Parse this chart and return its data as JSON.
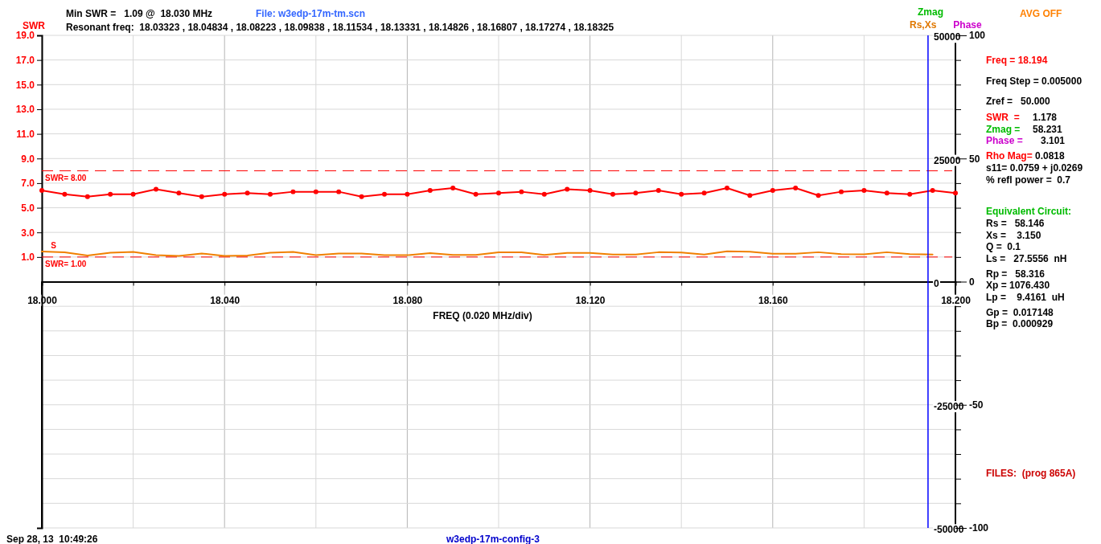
{
  "chart_data": {
    "type": "line",
    "xlabel": "FREQ (0.020 MHz/div)",
    "ylabel": "SWR",
    "y2label": "Zmag",
    "y3label": "Phase",
    "x": [
      18.0,
      18.005,
      18.01,
      18.015,
      18.02,
      18.025,
      18.03,
      18.035,
      18.04,
      18.045,
      18.05,
      18.055,
      18.06,
      18.065,
      18.07,
      18.075,
      18.08,
      18.085,
      18.09,
      18.095,
      18.1,
      18.105,
      18.11,
      18.115,
      18.12,
      18.125,
      18.13,
      18.135,
      18.14,
      18.145,
      18.15,
      18.155,
      18.16,
      18.165,
      18.17,
      18.175,
      18.18,
      18.185,
      18.19,
      18.195,
      18.2
    ],
    "series": [
      {
        "color": "#ff0000",
        "values": [
          6.4,
          6.1,
          5.9,
          6.1,
          6.1,
          6.5,
          6.2,
          5.9,
          6.1,
          6.2,
          6.1,
          6.3,
          6.3,
          6.3,
          5.9,
          6.1,
          6.1,
          6.4,
          6.6,
          6.1,
          6.2,
          6.3,
          6.1,
          6.5,
          6.4,
          6.1,
          6.2,
          6.4,
          6.1,
          6.2,
          6.6,
          6.0,
          6.4,
          6.6,
          6.0,
          6.3,
          6.4,
          6.2,
          6.1,
          6.4,
          6.2
        ]
      },
      {
        "color": "#f08000",
        "marker": "none",
        "values": [
          1.44,
          1.38,
          1.12,
          1.35,
          1.41,
          1.15,
          1.09,
          1.29,
          1.09,
          1.12,
          1.35,
          1.41,
          1.15,
          1.29,
          1.29,
          1.15,
          1.15,
          1.32,
          1.17,
          1.17,
          1.38,
          1.38,
          1.17,
          1.33,
          1.33,
          1.2,
          1.2,
          1.39,
          1.37,
          1.2,
          1.46,
          1.43,
          1.26,
          1.26,
          1.39,
          1.24,
          1.22,
          1.39,
          1.24,
          1.2,
          null
        ]
      }
    ],
    "xlim": [
      18.0,
      18.2
    ],
    "xticks": [
      {
        "value": 18.0,
        "label": "18.000"
      },
      {
        "value": 18.02,
        "label": null
      },
      {
        "value": 18.04,
        "label": "18.040"
      },
      {
        "value": 18.06,
        "label": null
      },
      {
        "value": 18.08,
        "label": "18.080"
      },
      {
        "value": 18.1,
        "label": null
      },
      {
        "value": 18.12,
        "label": "18.120"
      },
      {
        "value": 18.14,
        "label": null
      },
      {
        "value": 18.16,
        "label": "18.160"
      },
      {
        "value": 18.18,
        "label": null
      },
      {
        "value": 18.2,
        "label": "18.200"
      }
    ],
    "ylim": [
      -21,
      19
    ],
    "yticks": [
      {
        "value": 1,
        "label": "1.0"
      },
      {
        "value": 3,
        "label": "3.0"
      },
      {
        "value": 5,
        "label": "5.0"
      },
      {
        "value": 7,
        "label": "7.0"
      },
      {
        "value": 9,
        "label": "9.0"
      },
      {
        "value": 11,
        "label": "11.0"
      },
      {
        "value": 13,
        "label": "13.0"
      },
      {
        "value": 15,
        "label": "15.0"
      },
      {
        "value": 17,
        "label": "17.0"
      },
      {
        "value": 19,
        "label": "19.0"
      }
    ],
    "y2lim": [
      -50000,
      50000
    ],
    "y2ticks": [
      -50000,
      {
        "value": -45000,
        "label": null
      },
      {
        "value": -40000,
        "label": null
      },
      {
        "value": -35000,
        "label": null
      },
      {
        "value": -30000,
        "label": null
      },
      -25000,
      {
        "value": -20000,
        "label": null
      },
      {
        "value": -15000,
        "label": null
      },
      {
        "value": -10000,
        "label": null
      },
      {
        "value": -5000,
        "label": null
      },
      0,
      {
        "value": 5000,
        "label": null
      },
      {
        "value": 10000,
        "label": null
      },
      {
        "value": 15000,
        "label": null
      },
      {
        "value": 20000,
        "label": null
      },
      25000,
      {
        "value": 30000,
        "label": null
      },
      {
        "value": 35000,
        "label": null
      },
      {
        "value": 40000,
        "label": null
      },
      {
        "value": 45000,
        "label": null
      },
      50000
    ],
    "y3lim": [
      -100,
      100
    ],
    "y3ticks": [
      -100,
      -50,
      0,
      50,
      100
    ],
    "grid": true,
    "marker": "circle",
    "ref_lines": [
      {
        "axis": "y",
        "value": 8,
        "label": "SWR= 8.00",
        "color": "#ff0000",
        "line_style": "dashed"
      },
      {
        "axis": "y",
        "value": 1,
        "label": "SWR= 1.00",
        "color": "#ff0000",
        "line_style": "dashed"
      },
      {
        "axis": "x",
        "value": 18.194,
        "color": "#0000ff",
        "line_style": "solid"
      }
    ],
    "annotations": [
      "Min SWR =   1.09 @  18.030 MHz",
      "File: w3edp-17m-tm.scn",
      "Resonant freq:  18.03323 , 18.04834 , 18.08223 , 18.09838 , 18.11534 , 18.13331 , 18.14826 , 18.16807 , 18.17274 , 18.18325",
      "Rs,Xs",
      "AVG OFF",
      "Freq = 18.194",
      "Freq Step = 0.005000",
      "Zref =   50.000",
      "SWR  =",
      "1.178",
      "Zmag =",
      "58.231",
      "Phase =",
      "3.101",
      "Rho Mag=",
      "0.0818",
      "s11= 0.0759 + j0.0269",
      "% refl power =  0.7",
      "Equivalent Circuit:",
      "Rs =   58.146",
      "Xs =    3.150",
      "Q =  0.1",
      "Ls =   27.5556  nH",
      "Rp =   58.316",
      "Xp = 1076.430",
      "Lp =    9.4161  uH",
      "Gp =  0.017148",
      "Bp =  0.000929",
      "FILES:  (prog 865A)",
      "Sep 28, 13  10:49:26",
      "w3edp-17m-config-3",
      {
        "text": "S",
        "x": 18.002,
        "y": 1.7
      }
    ]
  }
}
